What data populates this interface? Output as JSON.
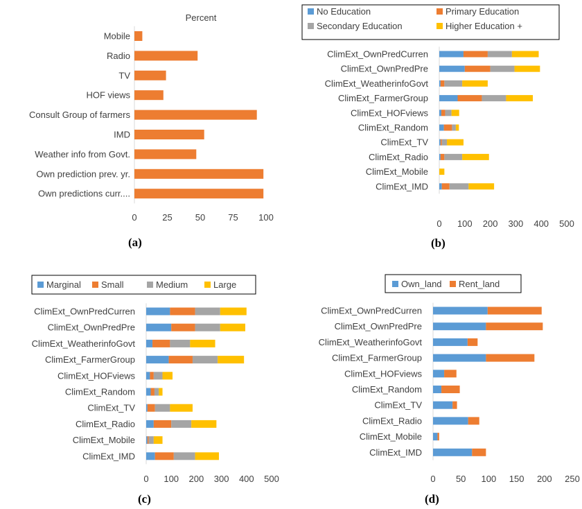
{
  "colors": {
    "blue": "#5b9bd5",
    "orange": "#ed7d31",
    "gray": "#a5a5a5",
    "yellow": "#ffc000",
    "axis": "#d9d9d9",
    "text": "#404040"
  },
  "chart_data": [
    {
      "id": "a",
      "panel_label": "(a)",
      "type": "bar",
      "orientation": "horizontal",
      "title": "Percent",
      "categories": [
        "Mobile",
        "Radio",
        "TV",
        "HOF views",
        "Consult Group of farmers",
        "IMD",
        "Weather info from Govt.",
        "Own prediction prev. yr.",
        "Own predictions curr...."
      ],
      "series": [
        {
          "values": [
            6,
            48,
            24,
            22,
            93,
            53,
            47,
            98,
            98
          ],
          "color": "#ed7d31"
        }
      ],
      "xlim": [
        0,
        100
      ],
      "xticks": [
        "0",
        "25",
        "50",
        "75",
        "100"
      ],
      "grid": false
    },
    {
      "id": "b",
      "panel_label": "(b)",
      "type": "bar",
      "orientation": "horizontal",
      "stacked": true,
      "categories": [
        "ClimExt_OwnPredCurren",
        "ClimExt_OwnPredPre",
        "ClimExt_WeatherinfoGovt",
        "ClimExt_FarmerGroup",
        "ClimExt_HOFviews",
        "ClimExt_Random",
        "ClimExt_TV",
        "ClimExt_Radio",
        "ClimExt_Mobile",
        "ClimExt_IMD"
      ],
      "series": [
        {
          "name": "No Education",
          "color": "#5b9bd5",
          "values": [
            95,
            100,
            5,
            72,
            8,
            18,
            5,
            5,
            0,
            10
          ]
        },
        {
          "name": "Primary Education",
          "color": "#ed7d31",
          "values": [
            95,
            100,
            15,
            95,
            15,
            32,
            5,
            15,
            0,
            30
          ]
        },
        {
          "name": "Secondary Education",
          "color": "#a5a5a5",
          "values": [
            95,
            95,
            70,
            95,
            25,
            15,
            20,
            70,
            0,
            75
          ]
        },
        {
          "name": "Higher Education +",
          "color": "#ffc000",
          "values": [
            105,
            100,
            100,
            105,
            30,
            12,
            65,
            105,
            20,
            100
          ]
        }
      ],
      "legend_position": "top",
      "xlim": [
        0,
        500
      ],
      "xticks": [
        "0",
        "100",
        "200",
        "300",
        "400",
        "500"
      ],
      "grid": false
    },
    {
      "id": "c",
      "panel_label": "(c)",
      "type": "bar",
      "orientation": "horizontal",
      "stacked": true,
      "categories": [
        "ClimExt_OwnPredCurren",
        "ClimExt_OwnPredPre",
        "ClimExt_WeatherinfoGovt",
        "ClimExt_FarmerGroup",
        "ClimExt_HOFviews",
        "ClimExt_Random",
        "ClimExt_TV",
        "ClimExt_Radio",
        "ClimExt_Mobile",
        "ClimExt_IMD"
      ],
      "series": [
        {
          "name": "Marginal",
          "color": "#5b9bd5",
          "values": [
            95,
            100,
            25,
            90,
            15,
            18,
            5,
            30,
            5,
            35
          ]
        },
        {
          "name": "Small",
          "color": "#ed7d31",
          "values": [
            100,
            95,
            70,
            95,
            15,
            15,
            30,
            70,
            5,
            75
          ]
        },
        {
          "name": "Medium",
          "color": "#a5a5a5",
          "values": [
            100,
            100,
            80,
            100,
            35,
            17,
            60,
            80,
            20,
            85
          ]
        },
        {
          "name": "Large",
          "color": "#ffc000",
          "values": [
            105,
            100,
            100,
            105,
            40,
            15,
            90,
            100,
            35,
            95
          ]
        }
      ],
      "legend_position": "top",
      "xlim": [
        0,
        500
      ],
      "xticks": [
        "0",
        "100",
        "200",
        "300",
        "400",
        "500"
      ],
      "grid": false
    },
    {
      "id": "d",
      "panel_label": "(d)",
      "type": "bar",
      "orientation": "horizontal",
      "stacked": true,
      "categories": [
        "ClimExt_OwnPredCurren",
        "ClimExt_OwnPredPre",
        "ClimExt_WeatherinfoGovt",
        "ClimExt_FarmerGroup",
        "ClimExt_HOFviews",
        "ClimExt_Random",
        "ClimExt_TV",
        "ClimExt_Radio",
        "ClimExt_Mobile",
        "ClimExt_IMD"
      ],
      "series": [
        {
          "name": "Own_land",
          "color": "#5b9bd5",
          "values": [
            98,
            95,
            62,
            95,
            20,
            15,
            35,
            63,
            8,
            70
          ]
        },
        {
          "name": "Rent_land",
          "color": "#ed7d31",
          "values": [
            97,
            102,
            18,
            87,
            22,
            33,
            8,
            20,
            3,
            25
          ]
        }
      ],
      "legend_position": "top",
      "xlim": [
        0,
        250
      ],
      "xticks": [
        "0",
        "50",
        "100",
        "150",
        "200",
        "250"
      ],
      "grid": false
    }
  ]
}
